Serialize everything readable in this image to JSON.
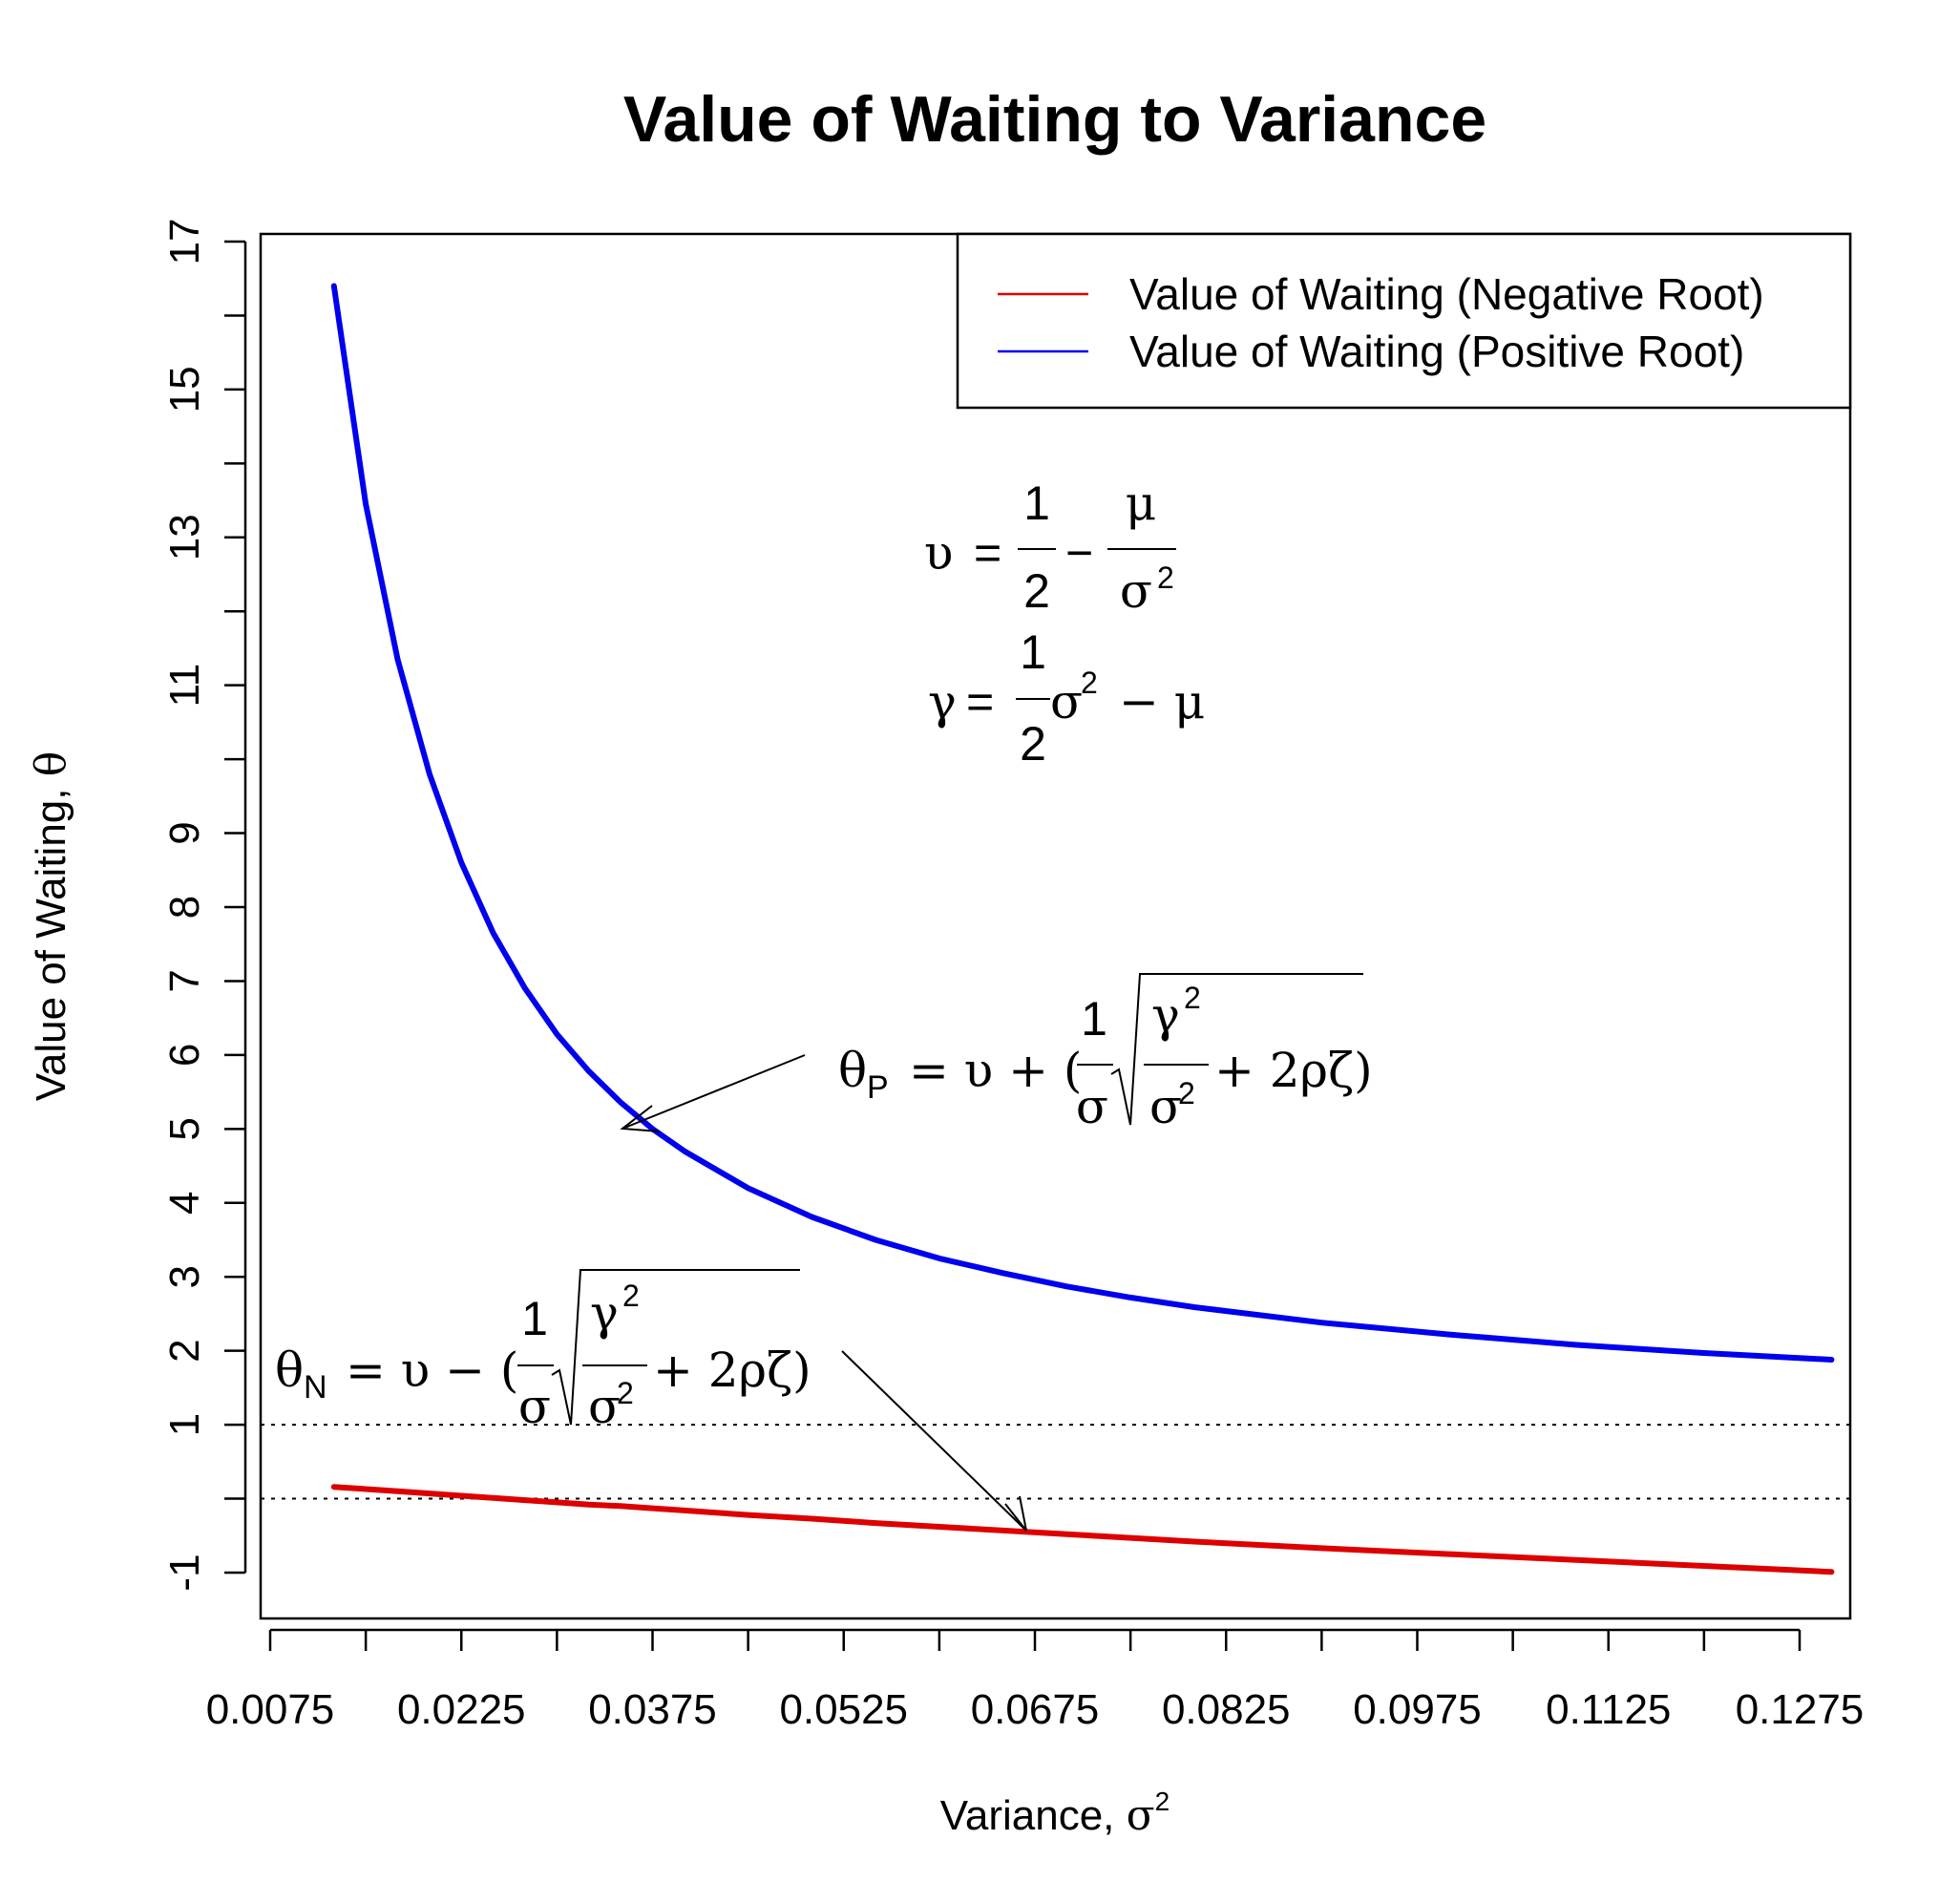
{
  "chart_data": {
    "type": "line",
    "title": "Value of Waiting to Variance",
    "xlabel": "Variance, ",
    "xlabel_symbol": "σ",
    "xlabel_sup": "2",
    "ylabel": "Value of Waiting, ",
    "ylabel_symbol": "θ",
    "xlim": [
      0.0075,
      0.1335
    ],
    "ylim": [
      -1.7,
      17.1
    ],
    "x_ticks": [
      "0.0075",
      "0.0225",
      "0.0375",
      "0.0525",
      "0.0675",
      "0.0825",
      "0.0975",
      "0.1125",
      "0.1275"
    ],
    "x_tick_values": [
      0.0075,
      0.015,
      0.0225,
      0.03,
      0.0375,
      0.045,
      0.0525,
      0.06,
      0.0675,
      0.075,
      0.0825,
      0.09,
      0.0975,
      0.105,
      0.1125,
      0.12,
      0.1275
    ],
    "y_tick_values": [
      -1,
      0,
      1,
      2,
      3,
      4,
      5,
      6,
      7,
      8,
      9,
      10,
      11,
      12,
      13,
      14,
      15,
      16,
      17
    ],
    "y_tick_labels": [
      "-1",
      "1",
      "2",
      "3",
      "4",
      "5",
      "6",
      "7",
      "8",
      "9",
      "11",
      "13",
      "15",
      "17"
    ],
    "reference_lines": [
      0,
      1
    ],
    "grid": false,
    "legend_position": "top-right",
    "x": [
      0.0125,
      0.015,
      0.0175,
      0.02,
      0.0225,
      0.025,
      0.0275,
      0.03,
      0.0325,
      0.035,
      0.0375,
      0.04,
      0.045,
      0.05,
      0.055,
      0.06,
      0.065,
      0.07,
      0.075,
      0.08,
      0.09,
      0.1,
      0.11,
      0.12,
      0.13
    ],
    "series": [
      {
        "name": "Value of Waiting (Negative Root)",
        "color": "#dd0000",
        "values": [
          0.16,
          0.13,
          0.1,
          0.07,
          0.04,
          0.01,
          -0.02,
          -0.05,
          -0.08,
          -0.1,
          -0.13,
          -0.16,
          -0.22,
          -0.27,
          -0.33,
          -0.38,
          -0.43,
          -0.48,
          -0.53,
          -0.58,
          -0.67,
          -0.75,
          -0.83,
          -0.91,
          -0.99
        ]
      },
      {
        "name": "Value of Waiting (Positive Root)",
        "color": "#0000ee",
        "values": [
          16.4,
          13.45,
          11.35,
          9.8,
          8.6,
          7.65,
          6.9,
          6.28,
          5.78,
          5.36,
          5.0,
          4.7,
          4.2,
          3.81,
          3.5,
          3.25,
          3.05,
          2.87,
          2.72,
          2.59,
          2.38,
          2.22,
          2.08,
          1.97,
          1.88
        ]
      }
    ],
    "annotations": {
      "upsilon": {
        "lhs": "υ",
        "eq": "=",
        "num": "1",
        "den": "2",
        "minus": "−",
        "num2": "μ",
        "den2": "σ",
        "den2_sup": "2"
      },
      "gamma": {
        "lhs": "γ",
        "eq": "=",
        "num": "1",
        "den": "2",
        "sigma": "σ",
        "sup": "2",
        "rest": "− μ"
      },
      "theta_p": {
        "lhs": "θ",
        "sub": "P",
        "body": "= υ + (",
        "num": "1",
        "den": "σ",
        "g": "γ",
        "gsup": "2",
        "s": "σ",
        "ssup": "2",
        "tail": "+ 2ρζ)"
      },
      "theta_n": {
        "lhs": "θ",
        "sub": "N",
        "body": "= υ − (",
        "num": "1",
        "den": "σ",
        "g": "γ",
        "gsup": "2",
        "s": "σ",
        "ssup": "2",
        "tail": "+ 2ρζ)"
      }
    }
  }
}
